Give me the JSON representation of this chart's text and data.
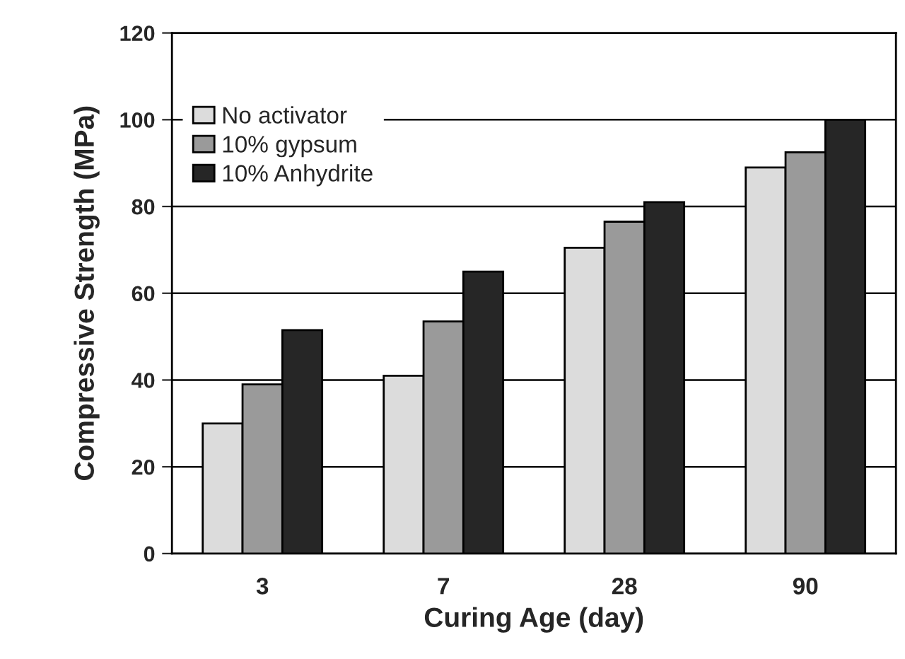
{
  "chart_data": {
    "type": "bar",
    "xlabel": "Curing Age (day)",
    "ylabel": "Compressive Strength (MPa)",
    "categories": [
      "3",
      "7",
      "28",
      "90"
    ],
    "series": [
      {
        "name": "No activator",
        "color": "#dcdcdc",
        "values": [
          30,
          41,
          70.5,
          89
        ]
      },
      {
        "name": "10% gypsum",
        "color": "#9a9a9a",
        "values": [
          39,
          53.5,
          76.5,
          92.5
        ]
      },
      {
        "name": "10% Anhydrite",
        "color": "#262626",
        "values": [
          51.5,
          65,
          81,
          100
        ]
      }
    ],
    "ylim": [
      0,
      120
    ],
    "yticks": [
      0,
      20,
      40,
      60,
      80,
      100,
      120
    ],
    "grid": "y",
    "legend": "top left"
  }
}
